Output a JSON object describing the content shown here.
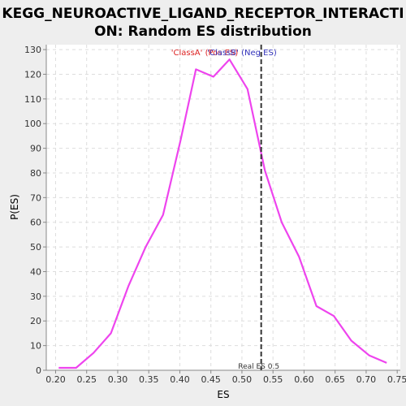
{
  "chart_data": {
    "type": "line",
    "title_lines": [
      "KEGG_NEUROACTIVE_LIGAND_RECEPTOR_INTERACTI",
      "ON: Random ES distribution"
    ],
    "xlabel": "ES",
    "ylabel": "P(ES)",
    "xlim": [
      0.185,
      0.755
    ],
    "ylim": [
      0,
      132
    ],
    "xticks": [
      0.2,
      0.25,
      0.3,
      0.35,
      0.4,
      0.45,
      0.5,
      0.55,
      0.6,
      0.65,
      0.7,
      0.75
    ],
    "yticks": [
      0,
      10,
      20,
      30,
      40,
      50,
      60,
      70,
      80,
      90,
      100,
      110,
      120,
      130
    ],
    "grid": true,
    "series": [
      {
        "color": "#ee44ee",
        "x": [
          0.205,
          0.233,
          0.261,
          0.289,
          0.317,
          0.345,
          0.373,
          0.401,
          0.426,
          0.454,
          0.48,
          0.509,
          0.537,
          0.564,
          0.592,
          0.62,
          0.648,
          0.676,
          0.705,
          0.733
        ],
        "y": [
          1,
          1,
          7,
          15,
          34,
          50,
          63,
          93,
          122,
          119,
          126,
          114,
          81,
          60,
          46,
          26,
          22,
          12,
          6,
          3
        ]
      }
    ],
    "real_es": {
      "x": 0.531,
      "label": "Real ES 0.5"
    },
    "legend": {
      "placement": "top-center",
      "items": [
        {
          "label": "'ClassA' (Pos ES)",
          "color": "#dd2222"
        },
        {
          "label": "'ClassB' (Neg ES)",
          "color": "#3333bb"
        }
      ]
    }
  }
}
